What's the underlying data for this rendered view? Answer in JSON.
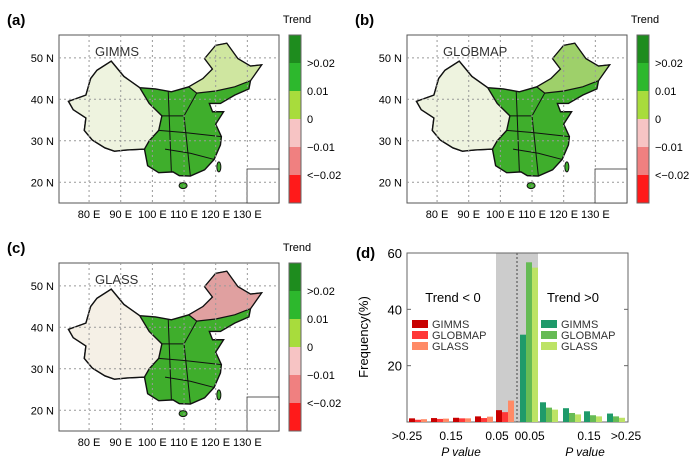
{
  "maps": [
    {
      "label": "(a)",
      "dataset": "GIMMS"
    },
    {
      "label": "(b)",
      "dataset": "GLOBMAP"
    },
    {
      "label": "(c)",
      "dataset": "GLASS"
    }
  ],
  "map_axes": {
    "lat_ticks": [
      "50 N",
      "40 N",
      "30 N",
      "20 N"
    ],
    "lon_ticks": [
      "80 E",
      "90 E",
      "100 E",
      "110 E",
      "120 E",
      "130 E"
    ]
  },
  "colorbar": {
    "title": "Trend",
    "labels": [
      ">0.02",
      "0.01",
      "0",
      "−0.01",
      "<−0.02"
    ],
    "colors": [
      "#1e8c1e",
      "#2db82d",
      "#a8dc3c",
      "#f7c4c4",
      "#f08080",
      "#ff1a1a"
    ]
  },
  "chart_data": {
    "type": "bar",
    "panel_label": "(d)",
    "ylabel": "Frequency(%)",
    "ylim": [
      0,
      60
    ],
    "yticks": [
      "20",
      "40",
      "60"
    ],
    "xtick_labels": [
      ">0.25",
      "0.15",
      "0.05",
      "0",
      "0.05",
      "0.15",
      ">0.25"
    ],
    "xlabel_left": "P value",
    "xlabel_right": "P value",
    "grid": false,
    "shaded_region": "P < 0.05",
    "groups": [
      {
        "title": "Trend < 0",
        "legend_placement": "left",
        "bins": [
          ">0.25",
          "0.20-0.25",
          "0.15-0.20",
          "0.10-0.15",
          "0.05-0.10"
        ],
        "series": [
          {
            "name": "GIMMS",
            "color": "#c80000",
            "values": [
              1.3,
              1.4,
              1.5,
              2.0,
              4.2
            ]
          },
          {
            "name": "GLOBMAP",
            "color": "#ff3838",
            "values": [
              0.8,
              1.1,
              1.3,
              1.4,
              3.5
            ]
          },
          {
            "name": "GLASS",
            "color": "#ff8a66",
            "values": [
              1.0,
              1.2,
              1.3,
              1.9,
              7.6
            ]
          }
        ]
      },
      {
        "title": "Trend >0",
        "legend_placement": "right",
        "bins": [
          "0-0.05",
          "0.05-0.10",
          "0.10-0.15",
          "0.15-0.20",
          ">0.25"
        ],
        "series": [
          {
            "name": "GIMMS",
            "color": "#1e9a6a",
            "values": [
              31,
              7.0,
              4.9,
              3.8,
              3.0
            ]
          },
          {
            "name": "GLOBMAP",
            "color": "#66bb55",
            "values": [
              56.7,
              5.1,
              3.2,
              2.4,
              2.0
            ]
          },
          {
            "name": "GLASS",
            "color": "#bde365",
            "values": [
              54.8,
              4.4,
              2.7,
              2.0,
              1.5
            ]
          }
        ]
      }
    ]
  }
}
